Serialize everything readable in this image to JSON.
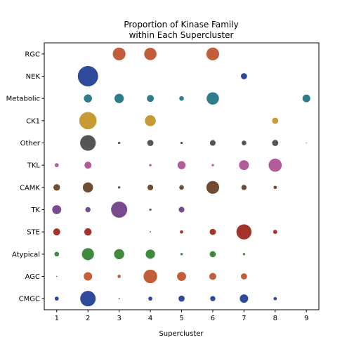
{
  "chart_data": {
    "type": "scatter",
    "title": [
      "Proportion of Kinase Family",
      "within Each Supercluster"
    ],
    "xlabel": "Supercluster",
    "ylabel": "",
    "x_ticks": [
      1,
      2,
      3,
      4,
      5,
      6,
      7,
      8,
      9
    ],
    "x_range": [
      0.6,
      9.4
    ],
    "grid": false,
    "size_encoding": "proportion",
    "families": [
      {
        "name": "RGC",
        "color": "#c25e3a",
        "points": [
          {
            "x": 3,
            "v": 0.3
          },
          {
            "x": 4,
            "v": 0.28
          },
          {
            "x": 6,
            "v": 0.3
          }
        ]
      },
      {
        "name": "NEK",
        "color": "#2e4a9a",
        "points": [
          {
            "x": 2,
            "v": 0.76
          },
          {
            "x": 7,
            "v": 0.07
          }
        ]
      },
      {
        "name": "Metabolic",
        "color": "#2e7d8c",
        "points": [
          {
            "x": 2,
            "v": 0.12
          },
          {
            "x": 3,
            "v": 0.16
          },
          {
            "x": 4,
            "v": 0.09
          },
          {
            "x": 5,
            "v": 0.04
          },
          {
            "x": 6,
            "v": 0.28
          },
          {
            "x": 9,
            "v": 0.11
          }
        ]
      },
      {
        "name": "CK1",
        "color": "#c79a35",
        "points": [
          {
            "x": 2,
            "v": 0.55
          },
          {
            "x": 4,
            "v": 0.22
          },
          {
            "x": 8,
            "v": 0.07
          }
        ]
      },
      {
        "name": "Other",
        "color": "#555555",
        "points": [
          {
            "x": 2,
            "v": 0.45
          },
          {
            "x": 3,
            "v": 0.01
          },
          {
            "x": 4,
            "v": 0.07
          },
          {
            "x": 5,
            "v": 0.01
          },
          {
            "x": 6,
            "v": 0.06
          },
          {
            "x": 7,
            "v": 0.04
          },
          {
            "x": 8,
            "v": 0.07
          },
          {
            "x": 9,
            "v": 0.001
          }
        ]
      },
      {
        "name": "TKL",
        "color": "#b35a9b",
        "points": [
          {
            "x": 1,
            "v": 0.03
          },
          {
            "x": 2,
            "v": 0.09
          },
          {
            "x": 4,
            "v": 0.01
          },
          {
            "x": 5,
            "v": 0.12
          },
          {
            "x": 6,
            "v": 0.01
          },
          {
            "x": 7,
            "v": 0.18
          },
          {
            "x": 8,
            "v": 0.32
          }
        ]
      },
      {
        "name": "CAMK",
        "color": "#704c33",
        "points": [
          {
            "x": 1,
            "v": 0.08
          },
          {
            "x": 2,
            "v": 0.19
          },
          {
            "x": 3,
            "v": 0.01
          },
          {
            "x": 4,
            "v": 0.06
          },
          {
            "x": 5,
            "v": 0.04
          },
          {
            "x": 6,
            "v": 0.3
          },
          {
            "x": 7,
            "v": 0.05
          },
          {
            "x": 8,
            "v": 0.02
          }
        ]
      },
      {
        "name": "TK",
        "color": "#784a8e",
        "points": [
          {
            "x": 1,
            "v": 0.15
          },
          {
            "x": 2,
            "v": 0.05
          },
          {
            "x": 3,
            "v": 0.48
          },
          {
            "x": 4,
            "v": 0.01
          },
          {
            "x": 5,
            "v": 0.06
          }
        ]
      },
      {
        "name": "STE",
        "color": "#a3332c",
        "points": [
          {
            "x": 1,
            "v": 0.09
          },
          {
            "x": 2,
            "v": 0.1
          },
          {
            "x": 4,
            "v": 0.003
          },
          {
            "x": 5,
            "v": 0.02
          },
          {
            "x": 6,
            "v": 0.07
          },
          {
            "x": 7,
            "v": 0.42
          },
          {
            "x": 8,
            "v": 0.03
          }
        ]
      },
      {
        "name": "Atypical",
        "color": "#3f8a3e",
        "points": [
          {
            "x": 1,
            "v": 0.04
          },
          {
            "x": 2,
            "v": 0.27
          },
          {
            "x": 3,
            "v": 0.19
          },
          {
            "x": 4,
            "v": 0.16
          },
          {
            "x": 5,
            "v": 0.01
          },
          {
            "x": 6,
            "v": 0.07
          },
          {
            "x": 7,
            "v": 0.01
          }
        ]
      },
      {
        "name": "AGC",
        "color": "#c25e3a",
        "points": [
          {
            "x": 1,
            "v": 0.003
          },
          {
            "x": 2,
            "v": 0.13
          },
          {
            "x": 3,
            "v": 0.02
          },
          {
            "x": 4,
            "v": 0.34
          },
          {
            "x": 5,
            "v": 0.15
          },
          {
            "x": 6,
            "v": 0.09
          },
          {
            "x": 7,
            "v": 0.07
          }
        ]
      },
      {
        "name": "CMGC",
        "color": "#2e4a9a",
        "points": [
          {
            "x": 1,
            "v": 0.03
          },
          {
            "x": 2,
            "v": 0.44
          },
          {
            "x": 3,
            "v": 0.003
          },
          {
            "x": 4,
            "v": 0.03
          },
          {
            "x": 5,
            "v": 0.07
          },
          {
            "x": 6,
            "v": 0.05
          },
          {
            "x": 7,
            "v": 0.13
          },
          {
            "x": 8,
            "v": 0.02
          }
        ]
      }
    ]
  }
}
